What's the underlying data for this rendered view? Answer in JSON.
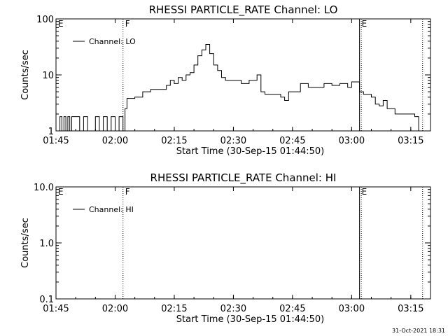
{
  "footer": {
    "timestamp": "31-Oct-2021 18:31"
  },
  "chart_data": [
    {
      "type": "line",
      "title": "RHESSI PARTICLE_RATE Channel: LO",
      "xlabel": "Start Time (30-Sep-15 01:44:50)",
      "ylabel": "Counts/sec",
      "yscale": "log",
      "ylim": [
        1,
        100
      ],
      "xlim_minutes": [
        105,
        200
      ],
      "x_ticks": [
        "01:45",
        "02:00",
        "02:15",
        "02:30",
        "02:45",
        "03:00",
        "03:15"
      ],
      "y_ticks": [
        "1",
        "10",
        "100"
      ],
      "legend": {
        "position": "top-left",
        "label": "Channel: LO"
      },
      "grid": false,
      "markers": [
        {
          "label": "E",
          "time": "01:45",
          "style": "solid"
        },
        {
          "label": "F",
          "time": "02:02",
          "style": "dotted"
        },
        {
          "label": "E",
          "time": "03:02",
          "style": "solid"
        },
        {
          "label": "",
          "time": "03:18",
          "style": "dotted"
        }
      ],
      "series": [
        {
          "name": "Channel: LO",
          "color": "#000000",
          "points": [
            [
              "01:45",
              1
            ],
            [
              "01:46",
              1.8
            ],
            [
              "01:46.5",
              1
            ],
            [
              "01:47",
              1.8
            ],
            [
              "01:47.5",
              1
            ],
            [
              "01:48",
              1.8
            ],
            [
              "01:48.5",
              1
            ],
            [
              "01:49",
              1.8
            ],
            [
              "01:51",
              1
            ],
            [
              "01:52",
              1.8
            ],
            [
              "01:53",
              1
            ],
            [
              "01:55",
              1.8
            ],
            [
              "01:56",
              1
            ],
            [
              "01:57",
              1.8
            ],
            [
              "01:58",
              1
            ],
            [
              "01:59",
              1.8
            ],
            [
              "02:00",
              1
            ],
            [
              "02:01",
              1.8
            ],
            [
              "02:02",
              1
            ],
            [
              "02:02.5",
              2.5
            ],
            [
              "02:03",
              3.8
            ],
            [
              "02:05",
              4
            ],
            [
              "02:07",
              5
            ],
            [
              "02:09",
              5.5
            ],
            [
              "02:11",
              5.5
            ],
            [
              "02:13",
              6.5
            ],
            [
              "02:14",
              8
            ],
            [
              "02:15",
              7
            ],
            [
              "02:16",
              9
            ],
            [
              "02:17",
              8
            ],
            [
              "02:18",
              10
            ],
            [
              "02:19",
              11
            ],
            [
              "02:20",
              15
            ],
            [
              "02:21",
              22
            ],
            [
              "02:22",
              28
            ],
            [
              "02:23",
              35
            ],
            [
              "02:24",
              24
            ],
            [
              "02:25",
              15
            ],
            [
              "02:26",
              12
            ],
            [
              "02:27",
              9
            ],
            [
              "02:28",
              8
            ],
            [
              "02:30",
              8
            ],
            [
              "02:32",
              7
            ],
            [
              "02:34",
              8
            ],
            [
              "02:36",
              10
            ],
            [
              "02:37",
              5
            ],
            [
              "02:38",
              4.5
            ],
            [
              "02:40",
              4.5
            ],
            [
              "02:42",
              4
            ],
            [
              "02:43",
              3.5
            ],
            [
              "02:44",
              5
            ],
            [
              "02:46",
              5
            ],
            [
              "02:47",
              7
            ],
            [
              "02:49",
              6
            ],
            [
              "02:51",
              6
            ],
            [
              "02:53",
              7
            ],
            [
              "02:55",
              6.5
            ],
            [
              "02:57",
              7
            ],
            [
              "02:59",
              6
            ],
            [
              "03:00",
              7.5
            ],
            [
              "03:02",
              5
            ],
            [
              "03:03",
              4.5
            ],
            [
              "03:05",
              4
            ],
            [
              "03:06",
              3
            ],
            [
              "03:07",
              2.8
            ],
            [
              "03:08",
              3.5
            ],
            [
              "03:09",
              2.5
            ],
            [
              "03:11",
              2
            ],
            [
              "03:13",
              2
            ],
            [
              "03:16",
              1.8
            ],
            [
              "03:17",
              1
            ]
          ]
        }
      ]
    },
    {
      "type": "line",
      "title": "RHESSI PARTICLE_RATE Channel: HI",
      "xlabel": "Start Time (30-Sep-15 01:44:50)",
      "ylabel": "Counts/sec",
      "yscale": "log",
      "ylim": [
        0.1,
        10
      ],
      "xlim_minutes": [
        105,
        200
      ],
      "x_ticks": [
        "01:45",
        "02:00",
        "02:15",
        "02:30",
        "02:45",
        "03:00",
        "03:15"
      ],
      "y_ticks": [
        "0.1",
        "1.0",
        "10.0"
      ],
      "legend": {
        "position": "top-left",
        "label": "Channel: HI"
      },
      "grid": false,
      "markers": [
        {
          "label": "E",
          "time": "01:45",
          "style": "solid"
        },
        {
          "label": "F",
          "time": "02:02",
          "style": "dotted"
        },
        {
          "label": "E",
          "time": "03:02",
          "style": "solid"
        },
        {
          "label": "",
          "time": "03:18",
          "style": "dotted"
        }
      ],
      "series": [
        {
          "name": "Channel: HI",
          "color": "#000000",
          "points": []
        }
      ]
    }
  ]
}
